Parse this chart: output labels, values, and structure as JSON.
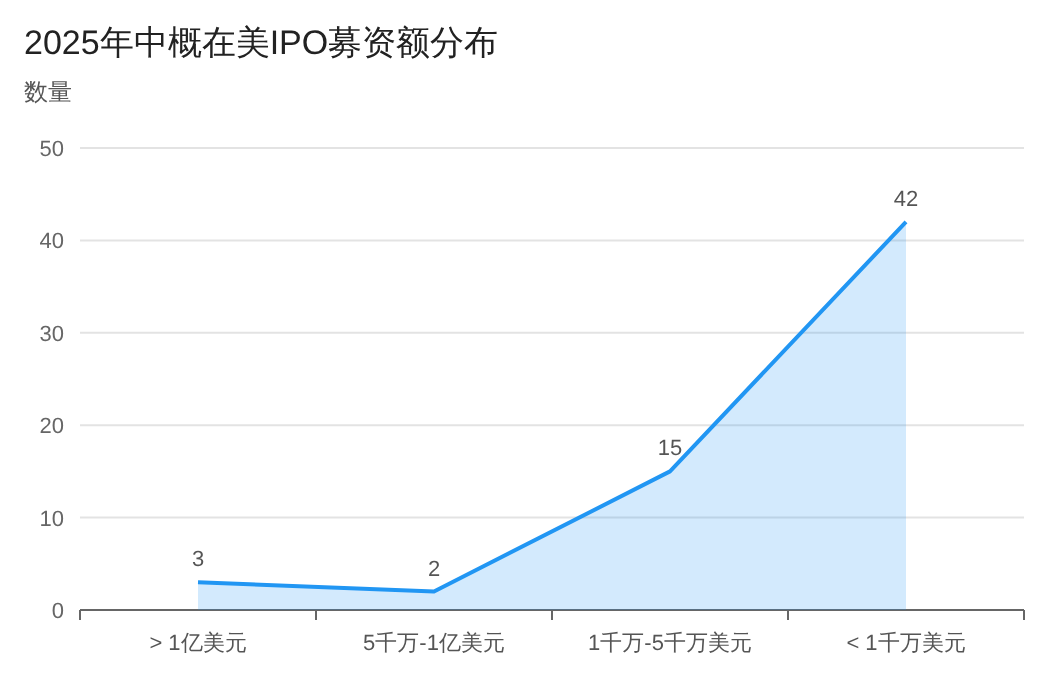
{
  "chart_data": {
    "type": "area",
    "title": "2025年中概在美IPO募资额分布",
    "ylabel": "数量",
    "categories": [
      "> 1亿美元",
      "5千万-1亿美元",
      "1千万-5千万美元",
      "< 1千万美元"
    ],
    "series": [
      {
        "color": "#2196f3",
        "values": [
          3,
          2,
          15,
          42
        ]
      }
    ],
    "ylim": [
      0,
      50
    ],
    "yticks": [
      0,
      10,
      20,
      30,
      40,
      50
    ],
    "grid": "y",
    "data_labels": true,
    "marker": "none"
  }
}
